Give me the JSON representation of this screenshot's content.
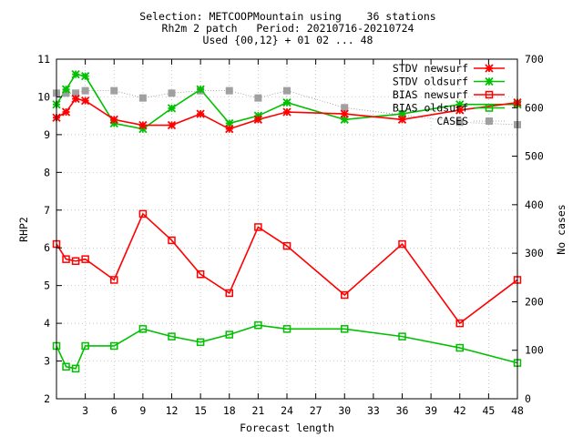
{
  "chart_data": {
    "type": "line",
    "title_lines": [
      "Selection: METCOOPMountain using    36 stations",
      "Rh2m 2 patch   Period: 20210716-20210724",
      "Used {00,12} + 01 02 ... 48"
    ],
    "xlabel": "Forecast length",
    "ylabel": "RHP2",
    "y2label": "No cases",
    "xlim": [
      0,
      48
    ],
    "ylim": [
      2,
      11
    ],
    "y2lim": [
      0,
      700
    ],
    "xticks": [
      3,
      6,
      9,
      12,
      15,
      18,
      21,
      24,
      27,
      30,
      33,
      36,
      39,
      42,
      45,
      48
    ],
    "yticks": [
      2,
      3,
      4,
      5,
      6,
      7,
      8,
      9,
      10,
      11
    ],
    "y2ticks": [
      0,
      100,
      200,
      300,
      400,
      500,
      600,
      700
    ],
    "grid": true,
    "legend_position": "top-right",
    "series": [
      {
        "name": "STDV newsurf",
        "color": "#ff0000",
        "marker": "star",
        "axis": "left",
        "x": [
          0,
          1,
          2,
          3,
          6,
          9,
          12,
          15,
          18,
          21,
          24,
          30,
          36,
          42,
          48
        ],
        "values": [
          9.45,
          9.6,
          9.95,
          9.9,
          9.4,
          9.25,
          9.25,
          9.55,
          9.15,
          9.4,
          9.6,
          9.55,
          9.4,
          9.65,
          9.85
        ]
      },
      {
        "name": "STDV oldsurf",
        "color": "#00c000",
        "marker": "star",
        "axis": "left",
        "x": [
          0,
          1,
          2,
          3,
          6,
          9,
          12,
          15,
          18,
          21,
          24,
          30,
          36,
          42,
          48
        ],
        "values": [
          9.8,
          10.2,
          10.6,
          10.55,
          9.3,
          9.15,
          9.7,
          10.2,
          9.3,
          9.5,
          9.85,
          9.4,
          9.55,
          9.8,
          9.8
        ]
      },
      {
        "name": "BIAS newsurf",
        "color": "#ff0000",
        "marker": "square",
        "axis": "left",
        "x": [
          0,
          1,
          2,
          3,
          6,
          9,
          12,
          15,
          18,
          21,
          24,
          30,
          36,
          42,
          48
        ],
        "values": [
          6.1,
          5.7,
          5.65,
          5.7,
          5.15,
          6.9,
          6.2,
          5.3,
          4.8,
          6.55,
          6.05,
          4.75,
          6.1,
          4.0,
          5.15
        ]
      },
      {
        "name": "BIAS oldsurf",
        "color": "#00c000",
        "marker": "square",
        "axis": "left",
        "x": [
          0,
          1,
          2,
          3,
          6,
          9,
          12,
          15,
          18,
          21,
          24,
          30,
          36,
          42,
          48
        ],
        "values": [
          3.4,
          2.85,
          2.8,
          3.4,
          3.4,
          3.85,
          3.65,
          3.5,
          3.7,
          3.95,
          3.85,
          3.85,
          3.65,
          3.35,
          2.95
        ]
      },
      {
        "name": "CASES",
        "color": "#a0a0a0",
        "marker": "filled-square",
        "axis": "right",
        "x": [
          0,
          1,
          2,
          3,
          6,
          9,
          12,
          15,
          18,
          21,
          24,
          30,
          36,
          42,
          48
        ],
        "values": [
          630,
          630,
          630,
          635,
          635,
          620,
          630,
          635,
          635,
          620,
          635,
          600,
          585,
          570,
          565
        ]
      }
    ]
  }
}
